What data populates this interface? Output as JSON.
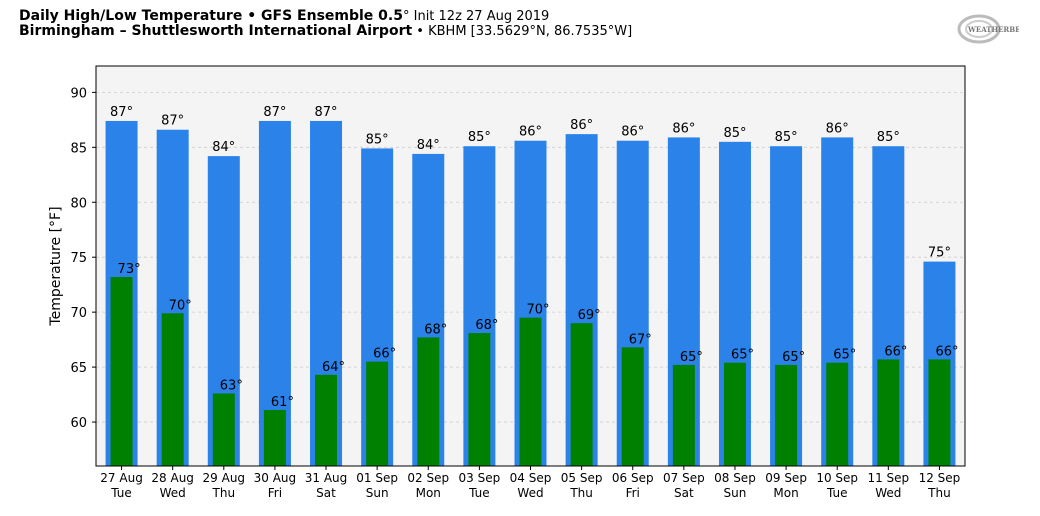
{
  "header": {
    "title_bold": "Daily High/Low Temperature • GFS Ensemble 0.5",
    "title_deg": "°",
    "title_init": " Init 12z 27 Aug 2019",
    "subtitle_bold": "Birmingham – Shuttlesworth International Airport",
    "subtitle_rest": " • KBHM [33.5629°N, 86.7535°W]",
    "logo_text": "WeatherBELL"
  },
  "colors": {
    "high": "#2b83ea",
    "low": "#008000",
    "plot_bg": "#f4f4f4",
    "grid": "#cccccc"
  },
  "chart_data": {
    "type": "bar",
    "title": "Daily High/Low Temperature • GFS Ensemble 0.5° Init 12z 27 Aug 2019",
    "xlabel": "",
    "ylabel": "Temperature [°F]",
    "ylim": [
      56,
      92.4
    ],
    "yticks": [
      60,
      65,
      70,
      75,
      80,
      85,
      90
    ],
    "grid": true,
    "categories": [
      [
        "27 Aug",
        "Tue"
      ],
      [
        "28 Aug",
        "Wed"
      ],
      [
        "29 Aug",
        "Thu"
      ],
      [
        "30 Aug",
        "Fri"
      ],
      [
        "31 Aug",
        "Sat"
      ],
      [
        "01 Sep",
        "Sun"
      ],
      [
        "02 Sep",
        "Mon"
      ],
      [
        "03 Sep",
        "Tue"
      ],
      [
        "04 Sep",
        "Wed"
      ],
      [
        "05 Sep",
        "Thu"
      ],
      [
        "06 Sep",
        "Fri"
      ],
      [
        "07 Sep",
        "Sat"
      ],
      [
        "08 Sep",
        "Sun"
      ],
      [
        "09 Sep",
        "Mon"
      ],
      [
        "10 Sep",
        "Tue"
      ],
      [
        "11 Sep",
        "Wed"
      ],
      [
        "12 Sep",
        "Thu"
      ]
    ],
    "series": [
      {
        "name": "High",
        "values": [
          87.4,
          86.6,
          84.2,
          87.4,
          87.4,
          84.9,
          84.4,
          85.1,
          85.6,
          86.2,
          85.6,
          85.9,
          85.5,
          85.1,
          85.9,
          85.1,
          74.6
        ],
        "labels": [
          "87°",
          "87°",
          "84°",
          "87°",
          "87°",
          "85°",
          "84°",
          "85°",
          "86°",
          "86°",
          "86°",
          "86°",
          "85°",
          "85°",
          "86°",
          "85°",
          "75°"
        ]
      },
      {
        "name": "Low",
        "values": [
          73.2,
          69.9,
          62.6,
          61.1,
          64.3,
          65.5,
          67.7,
          68.1,
          69.5,
          69.0,
          66.8,
          65.2,
          65.4,
          65.2,
          65.4,
          65.7,
          65.7
        ],
        "labels": [
          "73°",
          "70°",
          "63°",
          "61°",
          "64°",
          "66°",
          "68°",
          "68°",
          "70°",
          "69°",
          "67°",
          "65°",
          "65°",
          "65°",
          "65°",
          "66°",
          "66°"
        ]
      }
    ]
  }
}
